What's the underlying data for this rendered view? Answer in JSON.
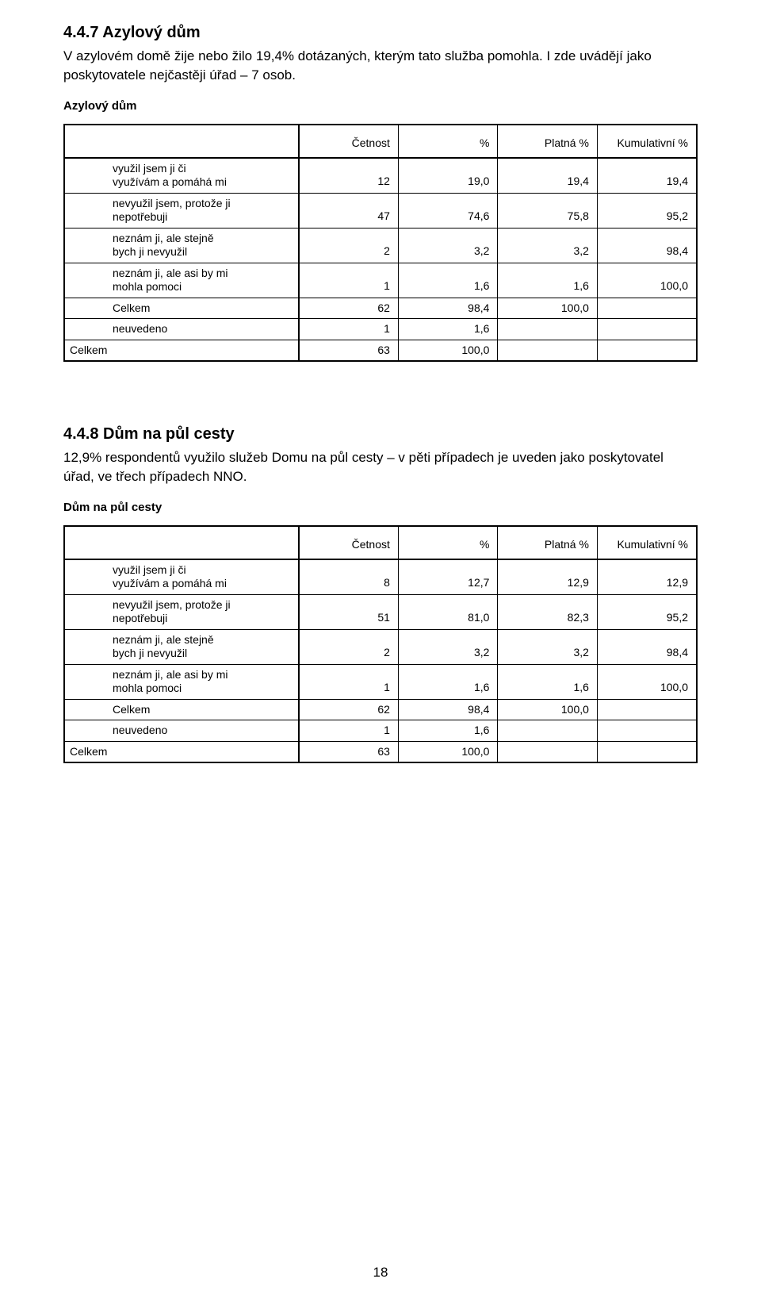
{
  "section1": {
    "heading": "4.4.7 Azylový dům",
    "paragraph": "V azylovém domě žije nebo žilo 19,4% dotázaných, kterým tato služba pomohla. I zde uvádějí jako poskytovatele nejčastěji úřad – 7 osob.",
    "table_title": "Azylový dům",
    "table": {
      "headers": [
        "",
        "Četnost",
        "%",
        "Platná %",
        "Kumulativní %"
      ],
      "rows": [
        {
          "label": "využil jsem ji či\nvyužívám a pomáhá mi",
          "c1": "12",
          "c2": "19,0",
          "c3": "19,4",
          "c4": "19,4",
          "sep": false
        },
        {
          "label": "nevyužil jsem, protože ji\nnepotřebuji",
          "c1": "47",
          "c2": "74,6",
          "c3": "75,8",
          "c4": "95,2",
          "sep": true
        },
        {
          "label": "neznám ji, ale stejně\nbych ji nevyužil",
          "c1": "2",
          "c2": "3,2",
          "c3": "3,2",
          "c4": "98,4",
          "sep": true
        },
        {
          "label": "neznám ji, ale asi by mi\nmohla pomoci",
          "c1": "1",
          "c2": "1,6",
          "c3": "1,6",
          "c4": "100,0",
          "sep": true
        },
        {
          "label": "Celkem",
          "c1": "62",
          "c2": "98,4",
          "c3": "100,0",
          "c4": "",
          "sep": true
        },
        {
          "label": "neuvedeno",
          "c1": "1",
          "c2": "1,6",
          "c3": "",
          "c4": "",
          "sep": true
        },
        {
          "label": "Celkem",
          "c1": "63",
          "c2": "100,0",
          "c3": "",
          "c4": "",
          "sep": true,
          "outdent": true
        }
      ]
    }
  },
  "section2": {
    "heading": "4.4.8 Dům na půl cesty",
    "paragraph": "12,9% respondentů využilo služeb Domu na půl cesty – v pěti případech je uveden jako poskytovatel úřad, ve třech případech NNO.",
    "table_title": "Dům na půl cesty",
    "table": {
      "headers": [
        "",
        "Četnost",
        "%",
        "Platná %",
        "Kumulativní %"
      ],
      "rows": [
        {
          "label": "využil jsem ji či\nvyužívám a pomáhá mi",
          "c1": "8",
          "c2": "12,7",
          "c3": "12,9",
          "c4": "12,9",
          "sep": false
        },
        {
          "label": "nevyužil jsem, protože ji\nnepotřebuji",
          "c1": "51",
          "c2": "81,0",
          "c3": "82,3",
          "c4": "95,2",
          "sep": true
        },
        {
          "label": "neznám ji, ale stejně\nbych ji nevyužil",
          "c1": "2",
          "c2": "3,2",
          "c3": "3,2",
          "c4": "98,4",
          "sep": true
        },
        {
          "label": "neznám ji, ale asi by mi\nmohla pomoci",
          "c1": "1",
          "c2": "1,6",
          "c3": "1,6",
          "c4": "100,0",
          "sep": true
        },
        {
          "label": "Celkem",
          "c1": "62",
          "c2": "98,4",
          "c3": "100,0",
          "c4": "",
          "sep": true
        },
        {
          "label": "neuvedeno",
          "c1": "1",
          "c2": "1,6",
          "c3": "",
          "c4": "",
          "sep": true
        },
        {
          "label": "Celkem",
          "c1": "63",
          "c2": "100,0",
          "c3": "",
          "c4": "",
          "sep": true,
          "outdent": true
        }
      ]
    }
  },
  "page_number": "18"
}
